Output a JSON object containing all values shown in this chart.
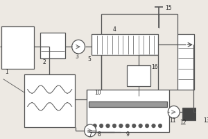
{
  "bg_color": "#ede9e3",
  "line_color": "#555555",
  "box_color": "#ffffff",
  "lw": 0.9,
  "fs": 5.5
}
